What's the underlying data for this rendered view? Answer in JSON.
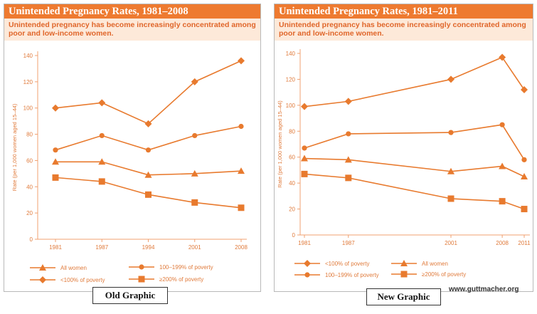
{
  "old_panel": {
    "title": "Unintended Pregnancy Rates, 1981–2008",
    "subtitle": "Unintended pregnancy has become increasingly concentrated among poor and low-income women.",
    "caption": "Old Graphic"
  },
  "new_panel": {
    "title": "Unintended Pregnancy Rates, 1981–2011",
    "subtitle": "Unintended pregnancy has become increasingly concentrated among poor and low-income women.",
    "caption": "New Graphic"
  },
  "credit": "www.guttmacher.org",
  "colors": {
    "accent": "#ee7a30",
    "series": "#e87a2e",
    "subtitle_bg": "#fde9d9",
    "subtitle_text": "#e0662a"
  },
  "chart_data": [
    {
      "type": "line",
      "x": [
        1981,
        1987,
        1994,
        2001,
        2008
      ],
      "x_scale": "categorical",
      "xlabel": "",
      "ylabel": "Rate (per 1,000 women aged 15–44)",
      "ylim": [
        0,
        140
      ],
      "yticks": [
        0,
        20,
        40,
        60,
        80,
        100,
        120,
        140
      ],
      "grid": false,
      "legend_position": "bottom",
      "series": [
        {
          "name": "All women",
          "marker": "triangle",
          "values": [
            59,
            59,
            49,
            50,
            52
          ]
        },
        {
          "name": "<100% of poverty",
          "marker": "diamond",
          "values": [
            100,
            104,
            88,
            120,
            136
          ]
        },
        {
          "name": "100–199% of poverty",
          "marker": "circle",
          "values": [
            68,
            79,
            68,
            79,
            86
          ]
        },
        {
          "name": "≥200% of poverty",
          "marker": "square",
          "values": [
            47,
            44,
            34,
            28,
            24
          ]
        }
      ]
    },
    {
      "type": "line",
      "x": [
        1981,
        1987,
        2001,
        2008,
        2011
      ],
      "x_scale": "linear",
      "xlabel": "",
      "ylabel": "Rate (per 1,000 women aged 15–44)",
      "ylim": [
        0,
        140
      ],
      "yticks": [
        0,
        20,
        40,
        60,
        80,
        100,
        120,
        140
      ],
      "grid": false,
      "legend_position": "bottom",
      "series": [
        {
          "name": "<100% of poverty",
          "marker": "diamond",
          "values": [
            99,
            103,
            120,
            137,
            112
          ]
        },
        {
          "name": "All women",
          "marker": "triangle",
          "values": [
            59,
            58,
            49,
            53,
            45
          ]
        },
        {
          "name": "100–199% of poverty",
          "marker": "circle",
          "values": [
            67,
            78,
            79,
            85,
            58
          ]
        },
        {
          "name": "≥200% of poverty",
          "marker": "square",
          "values": [
            47,
            44,
            28,
            26,
            20
          ]
        }
      ]
    }
  ]
}
